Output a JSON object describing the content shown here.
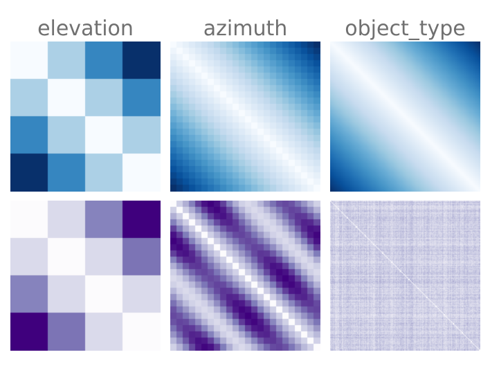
{
  "chart_data": [
    {
      "type": "heatmap",
      "title": "elevation",
      "row": 1,
      "colormap": "Blues",
      "n": 4,
      "pattern": "distance",
      "values": [
        [
          0.0,
          0.33,
          0.67,
          1.0
        ],
        [
          0.33,
          0.0,
          0.33,
          0.67
        ],
        [
          0.67,
          0.33,
          0.0,
          0.33
        ],
        [
          1.0,
          0.67,
          0.33,
          0.0
        ]
      ]
    },
    {
      "type": "heatmap",
      "title": "azimuth",
      "row": 1,
      "colormap": "Blues",
      "n": 24,
      "pattern": "distance"
    },
    {
      "type": "heatmap",
      "title": "object_type",
      "row": 1,
      "colormap": "Blues",
      "n": 200,
      "pattern": "distance"
    },
    {
      "type": "heatmap",
      "title": "",
      "row": 2,
      "colormap": "Purples",
      "n": 4,
      "pattern": "distance",
      "values": [
        [
          0.0,
          0.25,
          0.6,
          1.0
        ],
        [
          0.25,
          0.0,
          0.25,
          0.65
        ],
        [
          0.6,
          0.25,
          0.0,
          0.25
        ],
        [
          1.0,
          0.65,
          0.25,
          0.0
        ]
      ]
    },
    {
      "type": "heatmap",
      "title": "",
      "row": 2,
      "colormap": "Purples",
      "n": 24,
      "pattern": "periodic"
    },
    {
      "type": "heatmap",
      "title": "",
      "row": 2,
      "colormap": "Purples",
      "n": 200,
      "pattern": "noise"
    }
  ],
  "colors": {
    "title_text": "#707070",
    "background": "#ffffff"
  }
}
